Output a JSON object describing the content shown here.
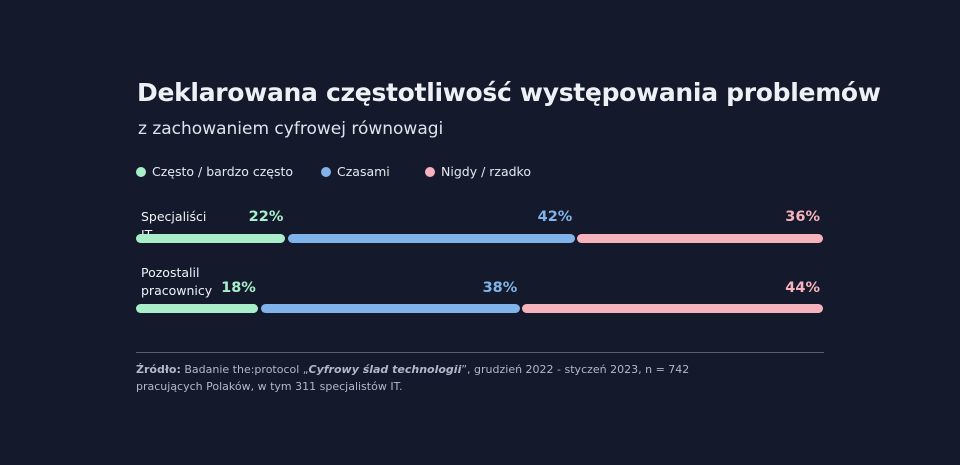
{
  "chart_data": {
    "type": "stacked-bar-horizontal",
    "title": "Deklarowana częstotliwość występowania problemów",
    "subtitle": "z zachowaniem cyfrowej równowagi",
    "categories": [
      "Specjaliści IT",
      "Pozostalil pracownicy"
    ],
    "series": [
      {
        "name": "Często / bardzo często",
        "color": "#a8efc9",
        "values": [
          22,
          18
        ],
        "value_labels": [
          "22%",
          "18%"
        ]
      },
      {
        "name": "Czasami",
        "color": "#80b3ea",
        "values": [
          42,
          38
        ],
        "value_labels": [
          "42%",
          "38%"
        ]
      },
      {
        "name": "Nigdy / rzadko",
        "color": "#f7b3bb",
        "values": [
          36,
          44
        ],
        "value_labels": [
          "36%",
          "44%"
        ]
      }
    ],
    "xlim": [
      0,
      100
    ]
  },
  "source": {
    "label": "Źródło:",
    "text_before": "Badanie the:protocol „",
    "italic": "Cyfrowy ślad technologii",
    "text_after": "”, grudzień 2022 - styczeń 2023, n = 742 pracujących Polaków, w tym 311 specjalistów IT."
  }
}
